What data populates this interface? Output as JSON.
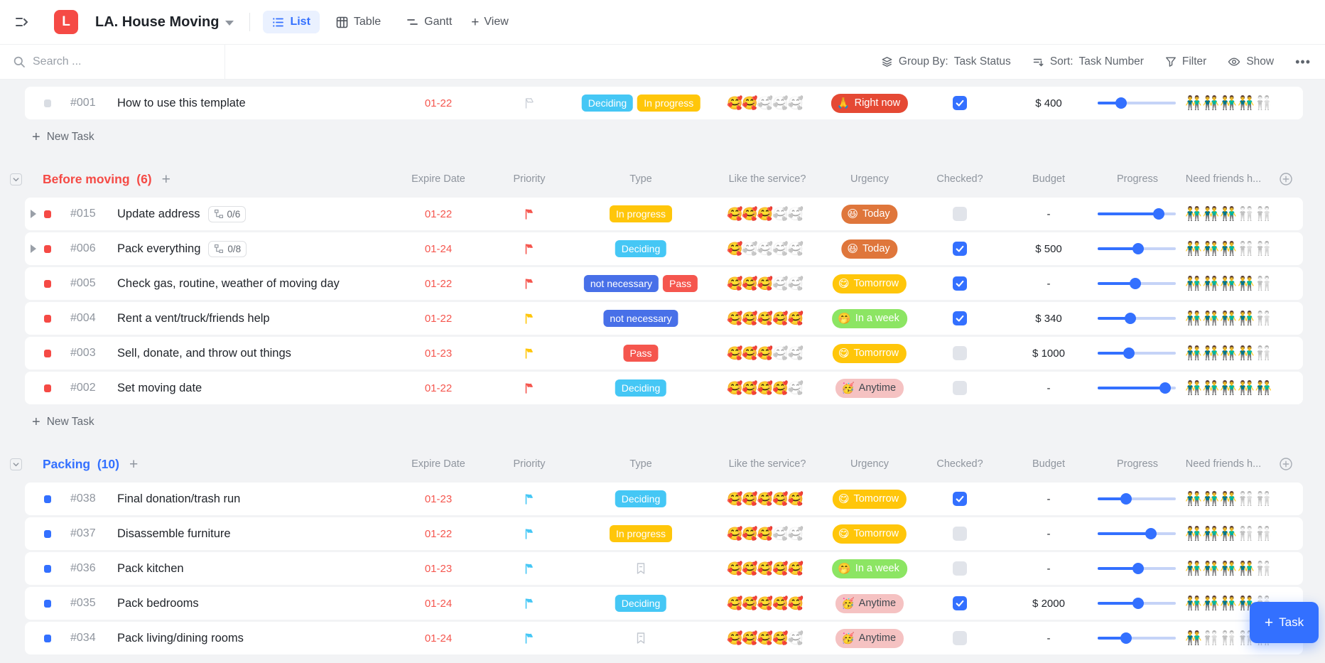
{
  "header": {
    "logo_letter": "L",
    "title": "LA. House Moving",
    "tabs": [
      {
        "label": "List",
        "active": true
      },
      {
        "label": "Table",
        "active": false
      },
      {
        "label": "Gantt",
        "active": false
      }
    ],
    "add_view_label": "View"
  },
  "toolbar": {
    "search_placeholder": "Search ...",
    "group_by_label": "Group By:",
    "group_by_value": "Task Status",
    "sort_label": "Sort:",
    "sort_value": "Task Number",
    "filter_label": "Filter",
    "show_label": "Show",
    "more_label": "•••"
  },
  "columns": [
    "Expire Date",
    "Priority",
    "Type",
    "Like the service?",
    "Urgency",
    "Checked?",
    "Budget",
    "Progress",
    "Need friends h..."
  ],
  "new_task_label": "New Task",
  "fab": {
    "label": "Task"
  },
  "emojis": {
    "service": "🥰",
    "friends": "👬",
    "urgency": {
      "Right now": "🙏",
      "Today": "😆",
      "Tomorrow": "😋",
      "In a week": "🤭",
      "Anytime": "🥳"
    }
  },
  "colors": {
    "accent": "#3370ff",
    "date": "#f5564e",
    "type_colors": {
      "Deciding": "#45c7f5",
      "In progress": "#ffc60a",
      "not necessary": "#4870e8",
      "Pass": "#f5564e"
    },
    "urgency_styles": {
      "Right now": {
        "bg": "#e54934",
        "fg": "#ffffff"
      },
      "Today": {
        "bg": "#df763b",
        "fg": "#ffffff"
      },
      "Tomorrow": {
        "bg": "#ffc60a",
        "fg": "#ffffff"
      },
      "In a week": {
        "bg": "#8ce563",
        "fg": "#ffffff"
      },
      "Anytime": {
        "bg": "#f5c2c2",
        "fg": "#41484f"
      }
    },
    "flag_colors": {
      "red": "#f5564e",
      "yellow": "#ffc60a",
      "blue": "#45c7f5",
      "none": "#c9ced6"
    },
    "bullet_colors": {
      "gray": "#d9dde3",
      "red": "#f54a45",
      "blue": "#3370ff"
    },
    "checkbox_on": "#3370ff",
    "checkbox_off": "#e1e4ea"
  },
  "sections": [
    {
      "header": null,
      "show_new_task": true,
      "tasks": [
        {
          "id": "#001",
          "name": "How to use this template",
          "bullet": "gray",
          "expandable": false,
          "subtasks": null,
          "date": "01-22",
          "priority": "none",
          "types": [
            "Deciding",
            "In progress"
          ],
          "service": 2,
          "urgency": "Right now",
          "checked": true,
          "budget": "$ 400",
          "progress": 30,
          "friends": 4
        }
      ]
    },
    {
      "header": {
        "title": "Before moving",
        "count": "(6)",
        "color": "#f54a45"
      },
      "show_new_task": true,
      "tasks": [
        {
          "id": "#015",
          "name": "Update address",
          "bullet": "red",
          "expandable": true,
          "subtasks": "0/6",
          "date": "01-22",
          "priority": "red",
          "types": [
            "In progress"
          ],
          "service": 3,
          "urgency": "Today",
          "checked": false,
          "budget": "-",
          "progress": 78,
          "friends": 3
        },
        {
          "id": "#006",
          "name": "Pack everything",
          "bullet": "red",
          "expandable": true,
          "subtasks": "0/8",
          "date": "01-24",
          "priority": "red",
          "types": [
            "Deciding"
          ],
          "service": 1,
          "urgency": "Today",
          "checked": true,
          "budget": "$ 500",
          "progress": 52,
          "friends": 3
        },
        {
          "id": "#005",
          "name": "Check gas, routine, weather of moving day",
          "bullet": "red",
          "expandable": false,
          "subtasks": null,
          "date": "01-22",
          "priority": "red",
          "types": [
            "not necessary",
            "Pass"
          ],
          "service": 3,
          "urgency": "Tomorrow",
          "checked": true,
          "budget": "-",
          "progress": 48,
          "friends": 4
        },
        {
          "id": "#004",
          "name": "Rent a vent/truck/friends help",
          "bullet": "red",
          "expandable": false,
          "subtasks": null,
          "date": "01-22",
          "priority": "yellow",
          "types": [
            "not necessary"
          ],
          "service": 5,
          "urgency": "In a week",
          "checked": true,
          "budget": "$ 340",
          "progress": 42,
          "friends": 4
        },
        {
          "id": "#003",
          "name": "Sell, donate, and throw out things",
          "bullet": "red",
          "expandable": false,
          "subtasks": null,
          "date": "01-23",
          "priority": "yellow",
          "types": [
            "Pass"
          ],
          "service": 3,
          "urgency": "Tomorrow",
          "checked": false,
          "budget": "$ 1000",
          "progress": 40,
          "friends": 4
        },
        {
          "id": "#002",
          "name": "Set moving date",
          "bullet": "red",
          "expandable": false,
          "subtasks": null,
          "date": "01-22",
          "priority": "red",
          "types": [
            "Deciding"
          ],
          "service": 4,
          "urgency": "Anytime",
          "checked": false,
          "budget": "-",
          "progress": 86,
          "friends": 5
        }
      ]
    },
    {
      "header": {
        "title": "Packing",
        "count": "(10)",
        "color": "#3370ff"
      },
      "show_new_task": false,
      "tasks": [
        {
          "id": "#038",
          "name": "Final donation/trash run",
          "bullet": "blue",
          "expandable": false,
          "subtasks": null,
          "date": "01-23",
          "priority": "blue",
          "types": [
            "Deciding"
          ],
          "service": 5,
          "urgency": "Tomorrow",
          "checked": true,
          "budget": "-",
          "progress": 36,
          "friends": 3
        },
        {
          "id": "#037",
          "name": "Disassemble furniture",
          "bullet": "blue",
          "expandable": false,
          "subtasks": null,
          "date": "01-22",
          "priority": "blue",
          "types": [
            "In progress"
          ],
          "service": 3,
          "urgency": "Tomorrow",
          "checked": false,
          "budget": "-",
          "progress": 68,
          "friends": 3
        },
        {
          "id": "#036",
          "name": "Pack kitchen",
          "bullet": "blue",
          "expandable": false,
          "subtasks": null,
          "date": "01-23",
          "priority": "blue",
          "types": [],
          "service": 5,
          "urgency": "In a week",
          "checked": false,
          "budget": "-",
          "progress": 52,
          "friends": 4
        },
        {
          "id": "#035",
          "name": "Pack bedrooms",
          "bullet": "blue",
          "expandable": false,
          "subtasks": null,
          "date": "01-24",
          "priority": "blue",
          "types": [
            "Deciding"
          ],
          "service": 5,
          "urgency": "Anytime",
          "checked": true,
          "budget": "$ 2000",
          "progress": 52,
          "friends": 4
        },
        {
          "id": "#034",
          "name": "Pack living/dining rooms",
          "bullet": "blue",
          "expandable": false,
          "subtasks": null,
          "date": "01-24",
          "priority": "blue",
          "types": [],
          "service": 4,
          "urgency": "Anytime",
          "checked": false,
          "budget": "-",
          "progress": 36,
          "friends": 1
        }
      ]
    }
  ]
}
